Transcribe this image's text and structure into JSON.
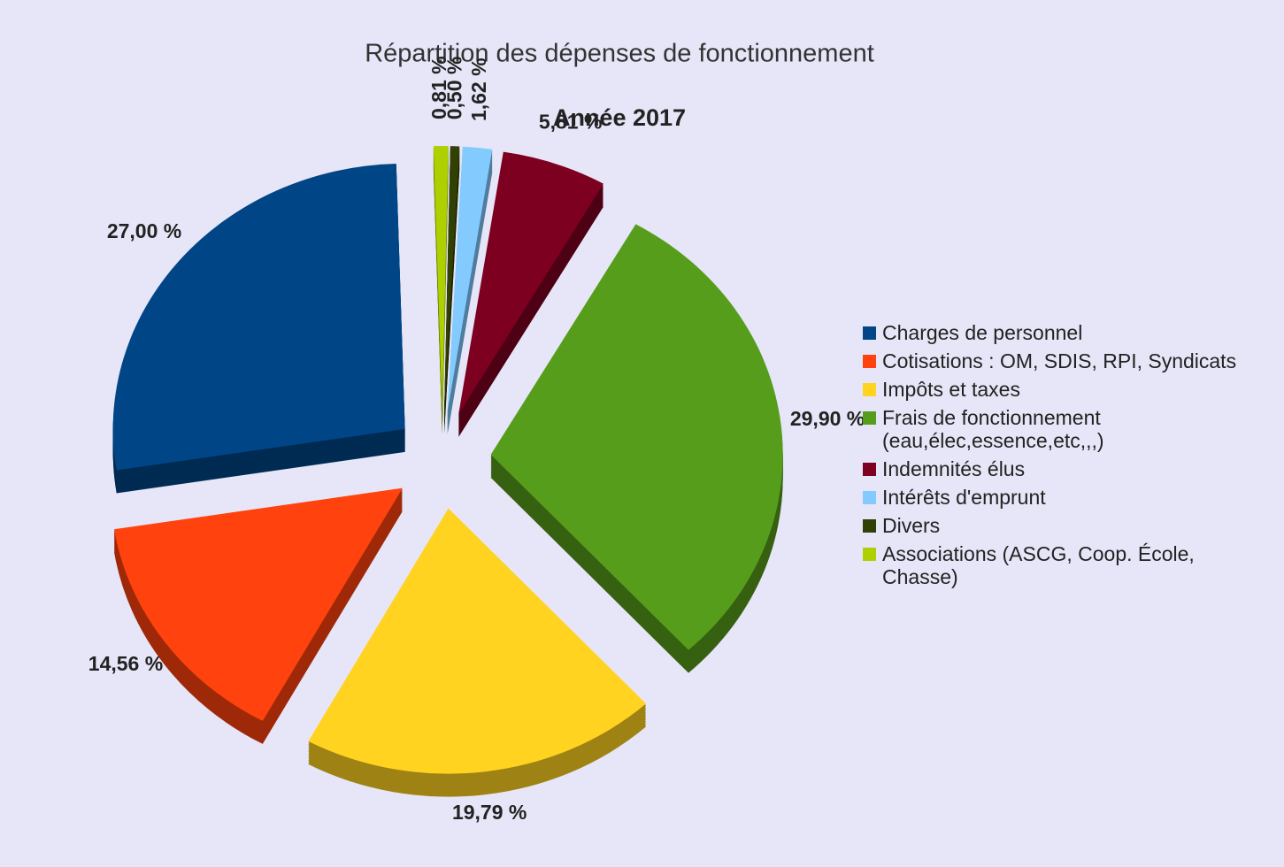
{
  "chart_data": {
    "type": "pie",
    "title": "Répartition des dépenses de fonctionnement",
    "subtitle": "Année 2017",
    "categories": [
      "Charges de personnel",
      "Cotisations : OM, SDIS, RPI, Syndicats",
      "Impôts et taxes",
      "Frais de fonctionnement\n(eau,élec,essence,etc,,,)",
      "Indemnités élus",
      "Intérêts d'emprunt",
      "Divers",
      "Associations (ASCG, Coop. École,\nChasse)"
    ],
    "values": [
      27.0,
      14.56,
      19.79,
      29.9,
      5.81,
      1.62,
      0.5,
      0.81
    ],
    "value_labels": [
      "27,00 %",
      "14,56 %",
      "19,79 %",
      "29,90 %",
      "5,81 %",
      "1,62 %",
      "0,50 %",
      "0,81 %"
    ],
    "colors": [
      "#004586",
      "#ff420e",
      "#ffd320",
      "#579d1c",
      "#7e0021",
      "#83caff",
      "#314004",
      "#aecf00"
    ],
    "legend": "right"
  }
}
